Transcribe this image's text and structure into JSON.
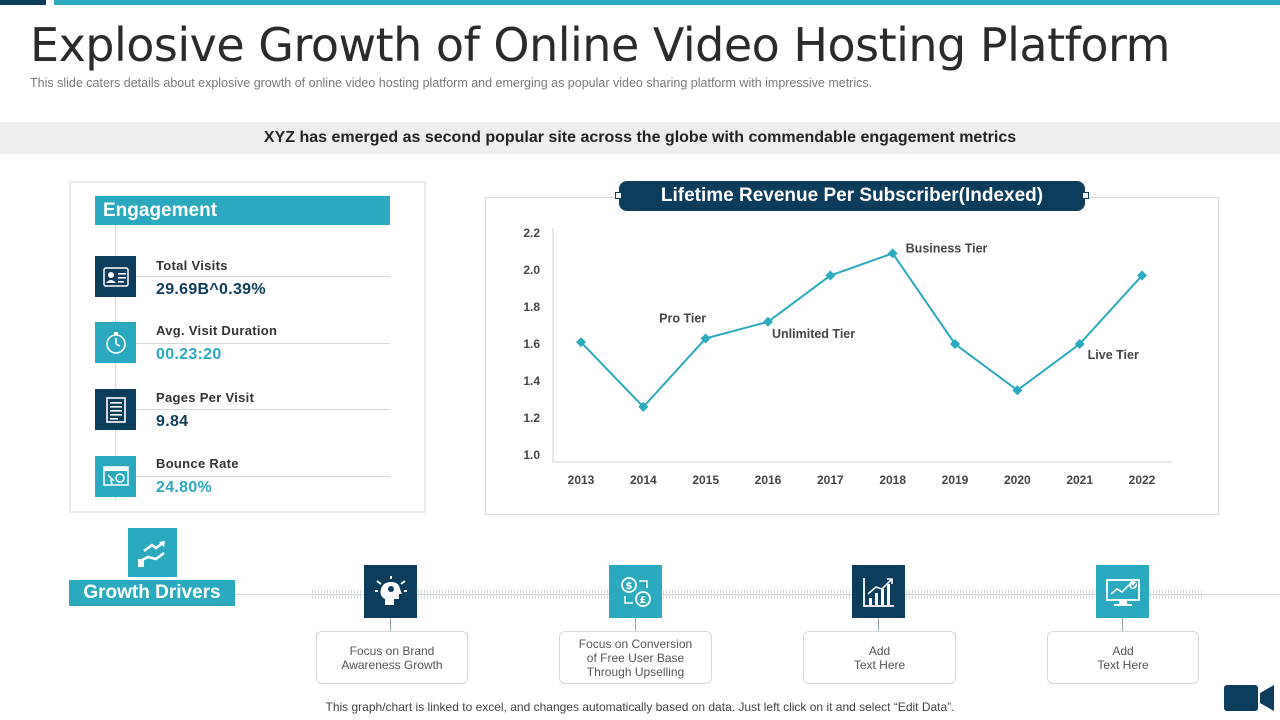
{
  "title": "Explosive Growth of Online Video Hosting Platform",
  "subtitle": "This slide caters details about explosive growth of online video hosting platform and emerging as popular video sharing platform with impressive metrics.",
  "banner": "XYZ has emerged as second popular site across the globe with commendable engagement metrics",
  "engagement": {
    "header": "Engagement",
    "metrics": [
      {
        "label": "Total Visits",
        "value": "29.69B^0.39%",
        "icon": "visitor-card-icon",
        "tone": "dark"
      },
      {
        "label": "Avg. Visit Duration",
        "value": "00.23:20",
        "icon": "stopwatch-icon",
        "tone": "teal"
      },
      {
        "label": "Pages Per Visit",
        "value": "9.84",
        "icon": "document-pages-icon",
        "tone": "dark"
      },
      {
        "label": "Bounce Rate",
        "value": "24.80%",
        "icon": "browser-click-icon",
        "tone": "teal"
      }
    ]
  },
  "chart_data": {
    "type": "line",
    "title": "Lifetime Revenue Per Subscriber(Indexed)",
    "categories": [
      "2013",
      "2014",
      "2015",
      "2016",
      "2017",
      "2018",
      "2019",
      "2020",
      "2021",
      "2022"
    ],
    "series": [
      {
        "values": [
          1.61,
          1.26,
          1.63,
          1.72,
          1.97,
          2.09,
          1.6,
          1.35,
          1.6,
          1.97
        ]
      }
    ],
    "ylim": [
      1.0,
      2.2
    ],
    "yticks": [
      "1.0",
      "1.2",
      "1.4",
      "1.6",
      "1.8",
      "2.0",
      "2.2"
    ],
    "annotations": [
      "Pro Tier",
      "Unlimited Tier",
      "Business Tier",
      "Live Tier"
    ],
    "color": "#2aa9bf",
    "grid": false,
    "legend": "none"
  },
  "growth_drivers": {
    "label": "Growth Drivers",
    "items": [
      {
        "text": "Focus on Brand\nAwareness Growth",
        "icon": "head-ideas-icon",
        "tone": "dark"
      },
      {
        "text": "Focus on Conversion\nof Free User Base\nThrough Upselling",
        "icon": "currency-exchange-icon",
        "tone": "teal"
      },
      {
        "text": "Add\nText Here",
        "icon": "bar-chart-growth-icon",
        "tone": "dark"
      },
      {
        "text": "Add\nText Here",
        "icon": "monitor-check-icon",
        "tone": "teal"
      }
    ]
  },
  "footnote": "This graph/chart is linked to excel, and changes automatically based on data. Just left click on it and select “Edit Data”."
}
